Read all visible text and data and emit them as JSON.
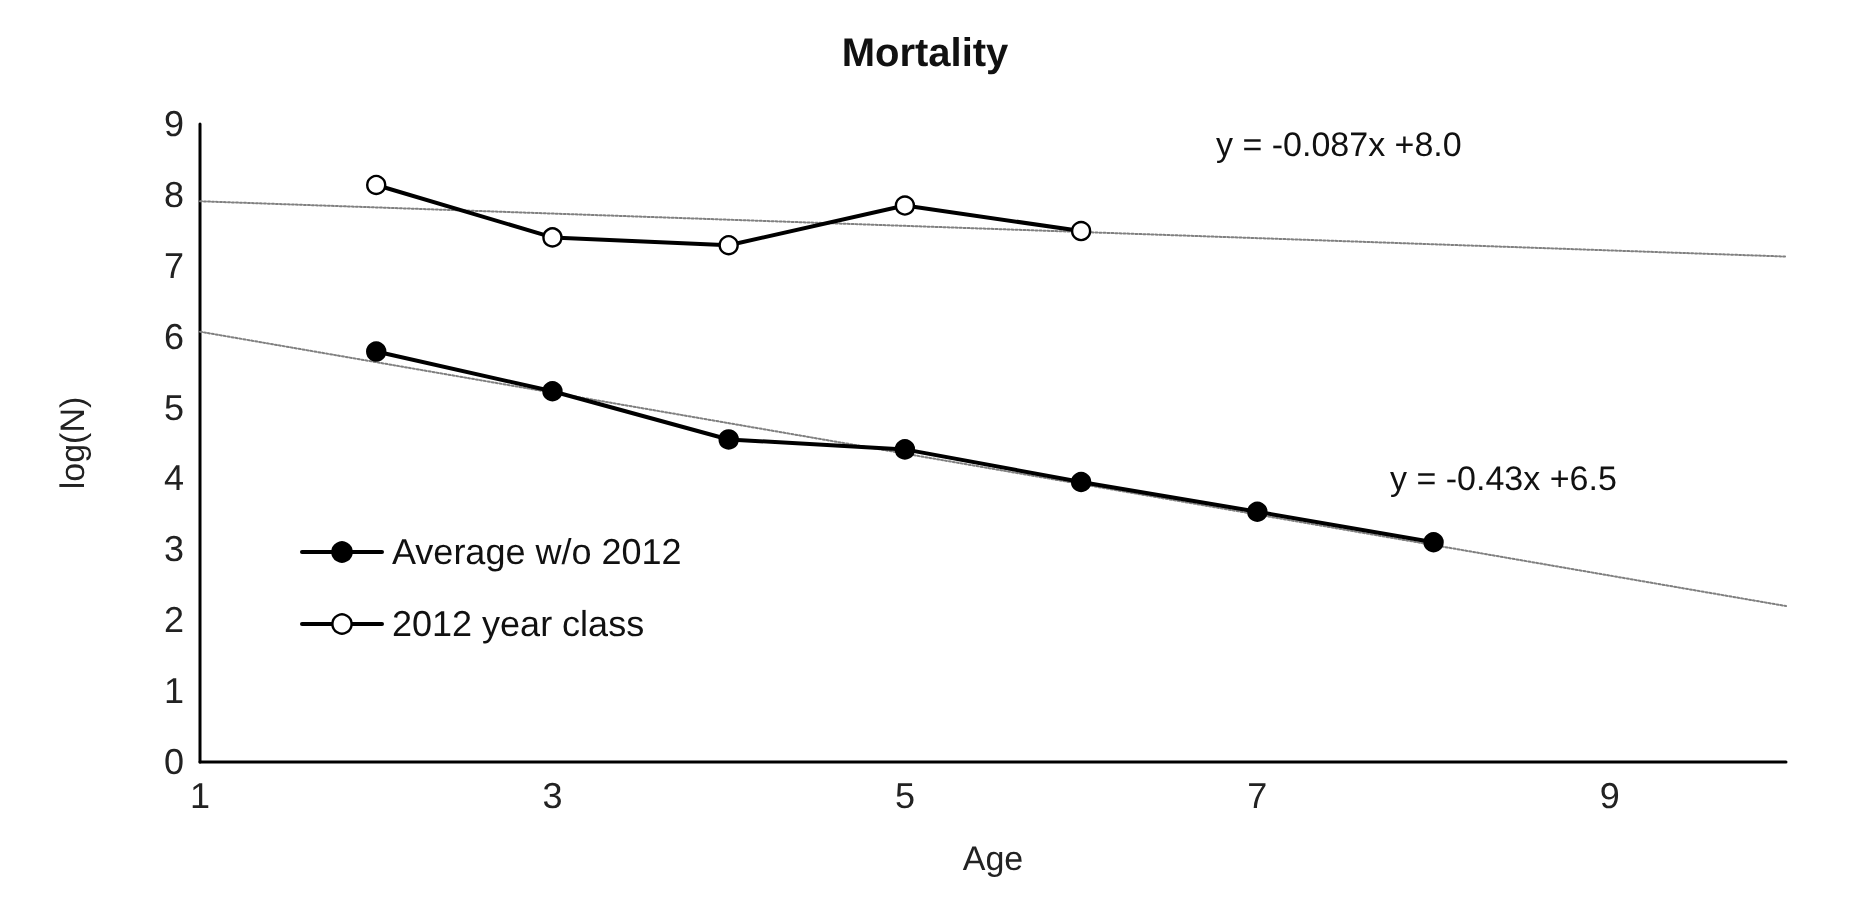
{
  "chart_data": {
    "type": "line",
    "title": "Mortality",
    "xlabel": "Age",
    "ylabel": "log(N)",
    "xlim": [
      1,
      10
    ],
    "xticks": [
      1,
      3,
      5,
      7,
      9
    ],
    "ylim": [
      0,
      9
    ],
    "yticks": [
      0,
      1,
      2,
      3,
      4,
      5,
      6,
      7,
      8,
      9
    ],
    "grid": false,
    "legend": "left",
    "marker": "circle",
    "line_style": "solid",
    "series": [
      {
        "name": "Average w/o 2012",
        "color": "#000000",
        "x": [
          2,
          3,
          4,
          5,
          6,
          7,
          8
        ],
        "values": [
          5.79,
          5.23,
          4.55,
          4.41,
          3.95,
          3.53,
          3.1
        ]
      },
      {
        "name": "2012 year class",
        "color": "#000000",
        "colors": [
          "#ffffff",
          "#ffffff",
          "#ffffff",
          "#ffffff",
          "#ffffff"
        ],
        "x": [
          2,
          3,
          4,
          5,
          6
        ],
        "values": [
          8.14,
          7.4,
          7.29,
          7.85,
          7.49
        ]
      },
      {
        "type": "line",
        "color": "#808080",
        "marker": "none",
        "line_style": "dotted",
        "x": [
          1,
          10
        ],
        "values": [
          7.91,
          7.13
        ]
      },
      {
        "type": "line",
        "color": "#808080",
        "marker": "none",
        "line_style": "dotted",
        "x": [
          1,
          10
        ],
        "values": [
          6.07,
          2.2
        ]
      }
    ],
    "annotations": [
      "y = -0.087x +8.0",
      "y = -0.43x +6.5"
    ]
  }
}
